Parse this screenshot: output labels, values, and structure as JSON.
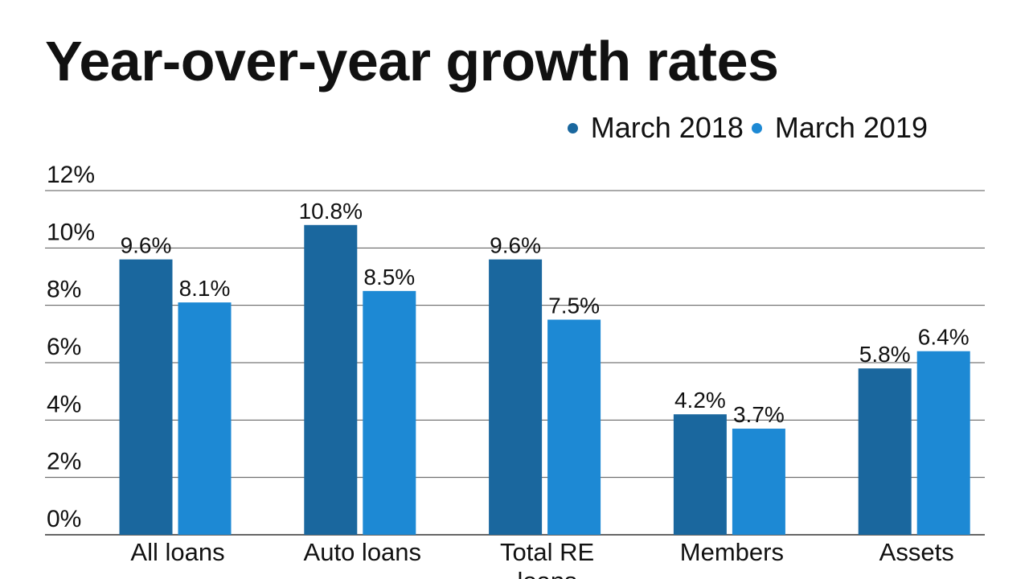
{
  "chart_data": {
    "type": "bar",
    "title": "Year-over-year growth rates",
    "categories": [
      "All loans",
      "Auto loans",
      "Total RE loans",
      "Members",
      "Assets"
    ],
    "series": [
      {
        "name": "March 2018",
        "color": "#1a679e",
        "values": [
          9.6,
          10.8,
          9.6,
          4.2,
          5.8
        ],
        "labels": [
          "9.6%",
          "10.8%",
          "9.6%",
          "4.2%",
          "5.8%"
        ]
      },
      {
        "name": "March 2019",
        "color": "#1d89d4",
        "values": [
          8.1,
          8.5,
          7.5,
          3.7,
          6.4
        ],
        "labels": [
          "8.1%",
          "8.5%",
          "7.5%",
          "3.7%",
          "6.4%"
        ]
      }
    ],
    "ylim": [
      0,
      12
    ],
    "yticks": [
      "0%",
      "2%",
      "4%",
      "6%",
      "8%",
      "10%",
      "12%"
    ],
    "xlabel": "",
    "ylabel": "",
    "grid": true,
    "legend_position": "top-right"
  }
}
